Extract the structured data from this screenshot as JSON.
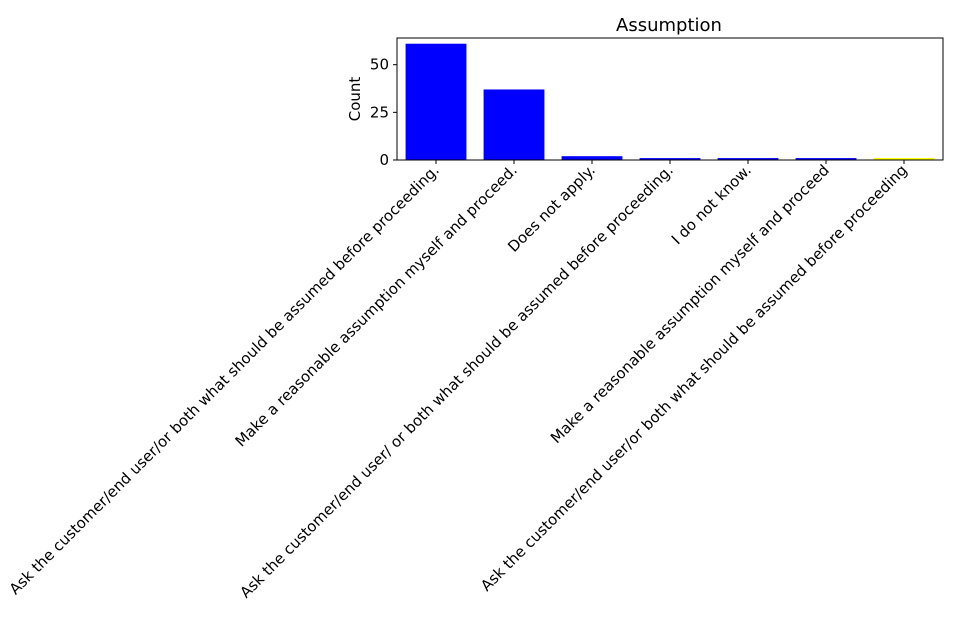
{
  "chart_data": {
    "type": "bar",
    "title": "Assumption",
    "xlabel": "",
    "ylabel": "Count",
    "categories": [
      "Ask the customer/end user/or both what should be assumed before proceeding.",
      "Make a reasonable assumption myself and proceed.",
      "Does not apply.",
      "Ask the customer/end user/ or both what should be assumed before proceeding.",
      "I do not know.",
      "Make a reasonable assumption myself and proceed",
      "Ask the customer/end user/or both what should be assumed before proceeding"
    ],
    "values": [
      61,
      37,
      2,
      1,
      1,
      1,
      1
    ],
    "bar_colors": [
      "#0000ff",
      "#0000ff",
      "#0000ff",
      "#0000ff",
      "#0000ff",
      "#0000ff",
      "#ffff00"
    ],
    "yticks": [
      0,
      25,
      50
    ],
    "ylim": [
      0,
      64
    ],
    "grid": false,
    "legend": "none"
  }
}
